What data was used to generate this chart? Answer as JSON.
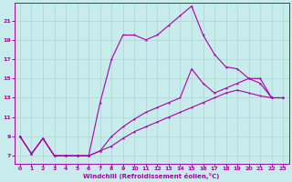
{
  "xlabel": "Windchill (Refroidissement éolien,°C)",
  "background_color": "#c8ecec",
  "grid_color": "#b0d8d8",
  "line_color": "#aa00aa",
  "x_ticks": [
    0,
    1,
    2,
    3,
    4,
    5,
    6,
    7,
    8,
    9,
    10,
    11,
    12,
    13,
    14,
    15,
    16,
    17,
    18,
    19,
    20,
    21,
    22,
    23
  ],
  "y_ticks": [
    7,
    9,
    11,
    13,
    15,
    17,
    19,
    21
  ],
  "xlim": [
    -0.5,
    23.5
  ],
  "ylim": [
    6.2,
    22.8
  ],
  "line1_x": [
    0,
    1,
    2,
    3,
    4,
    5,
    6,
    7,
    8,
    9,
    10,
    11,
    12,
    13,
    14,
    15,
    16,
    17,
    18,
    19,
    20,
    21,
    22,
    23
  ],
  "line1_y": [
    9.0,
    7.2,
    8.8,
    7.0,
    7.0,
    7.0,
    7.0,
    7.5,
    8.0,
    8.8,
    9.5,
    10.0,
    10.5,
    11.0,
    11.5,
    12.0,
    12.5,
    13.0,
    13.5,
    13.8,
    13.5,
    13.2,
    13.0,
    13.0
  ],
  "line2_x": [
    0,
    1,
    2,
    3,
    4,
    5,
    6,
    7,
    8,
    9,
    10,
    11,
    12,
    13,
    14,
    15,
    16,
    17,
    18,
    19,
    20,
    21,
    22,
    23
  ],
  "line2_y": [
    9.0,
    7.2,
    8.8,
    7.0,
    7.0,
    7.0,
    7.0,
    12.5,
    17.0,
    19.5,
    19.5,
    19.0,
    19.5,
    20.5,
    21.5,
    22.5,
    19.5,
    17.5,
    16.2,
    16.0,
    15.0,
    14.5,
    13.0,
    13.0
  ],
  "line3_x": [
    0,
    1,
    2,
    3,
    4,
    5,
    6,
    7,
    8,
    9,
    10,
    11,
    12,
    13,
    14,
    15,
    16,
    17,
    18,
    19,
    20,
    21,
    22,
    23
  ],
  "line3_y": [
    9.0,
    7.2,
    8.8,
    7.0,
    7.0,
    7.0,
    7.0,
    7.5,
    9.0,
    10.0,
    10.8,
    11.5,
    12.0,
    12.5,
    13.0,
    16.0,
    14.5,
    13.5,
    14.0,
    14.5,
    15.0,
    15.0,
    13.0,
    13.0
  ]
}
